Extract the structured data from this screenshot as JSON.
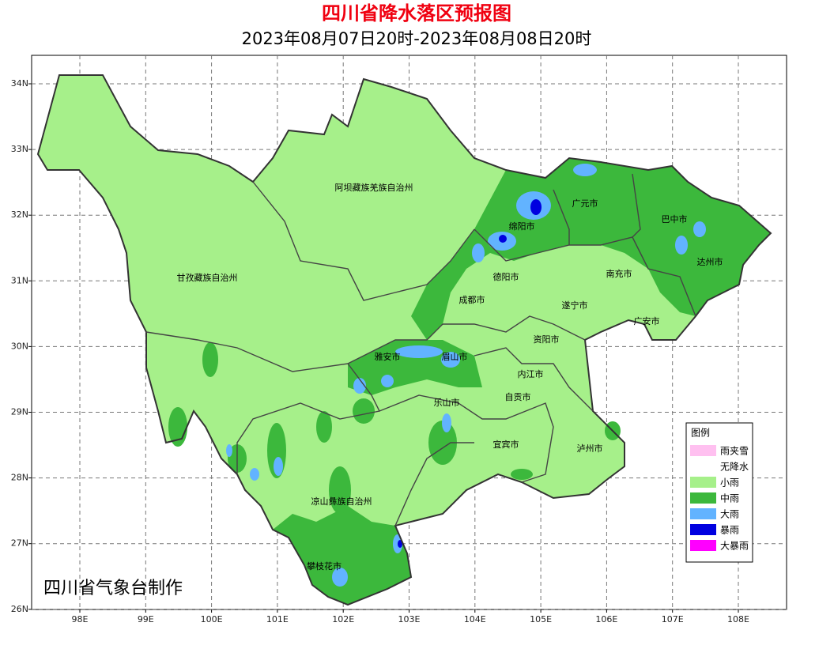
{
  "header": {
    "title": "四川省降水落区预报图",
    "subtitle": "2023年08月07日20时-2023年08月08日20时"
  },
  "map": {
    "lon_labels": [
      "98E",
      "99E",
      "100E",
      "101E",
      "102E",
      "103E",
      "104E",
      "105E",
      "106E",
      "107E",
      "108E"
    ],
    "lat_labels": [
      "34N",
      "33N",
      "32N",
      "31N",
      "30N",
      "29N",
      "28N",
      "27N",
      "26N"
    ],
    "regions": [
      "阿坝藏族羌族自治州",
      "甘孜藏族自治州",
      "凉山彝族自治州",
      "攀枝花市",
      "广元市",
      "巴中市",
      "绵阳市",
      "达州市",
      "南充市",
      "德阳市",
      "成都市",
      "遂宁市",
      "广安市",
      "资阳市",
      "雅安市",
      "眉山市",
      "内江市",
      "自贡市",
      "乐山市",
      "宜宾市",
      "泸州市"
    ]
  },
  "legend": {
    "title": "图例",
    "items": [
      {
        "label": "雨夹雪",
        "color": "#ffc0f0"
      },
      {
        "label": "无降水",
        "color": "#ffffff"
      },
      {
        "label": "小雨",
        "color": "#a6f08a"
      },
      {
        "label": "中雨",
        "color": "#3cb83c"
      },
      {
        "label": "大雨",
        "color": "#62b3ff"
      },
      {
        "label": "暴雨",
        "color": "#0000e0"
      },
      {
        "label": "大暴雨",
        "color": "#ff00ff"
      }
    ]
  },
  "credit": "四川省气象台制作"
}
